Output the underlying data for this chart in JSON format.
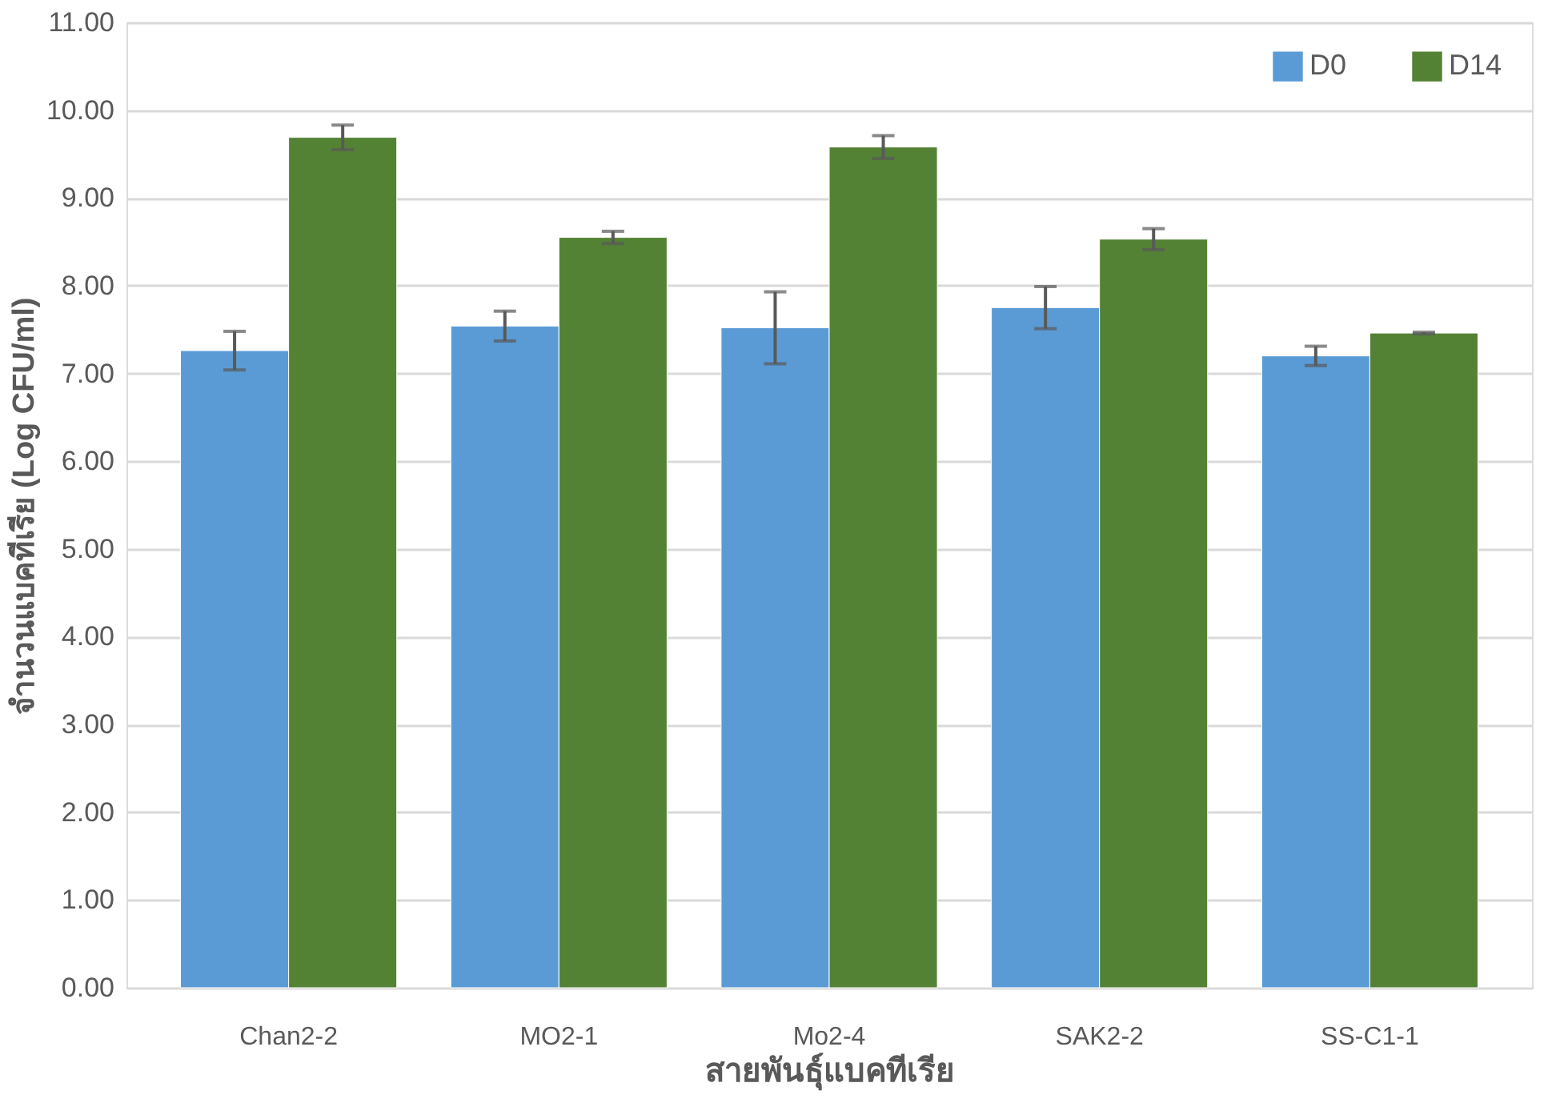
{
  "chart_data": {
    "type": "bar",
    "xlabel": "สายพันธุ์แบคทีเรีย",
    "ylabel": "จำนวนแบคทีเรีย (Log CFU/ml)",
    "categories": [
      "Chan2-2",
      "MO2-1",
      "Mo2-4",
      "SAK2-2",
      "SS-C1-1"
    ],
    "series": [
      {
        "name": "D0",
        "color": "#5b9bd5",
        "values": [
          7.26,
          7.54,
          7.52,
          7.75,
          7.2
        ],
        "errors": [
          0.22,
          0.17,
          0.41,
          0.24,
          0.11
        ]
      },
      {
        "name": "D14",
        "color": "#548235",
        "values": [
          9.69,
          8.55,
          9.58,
          8.53,
          7.46
        ],
        "errors": [
          0.14,
          0.07,
          0.13,
          0.12,
          0.01
        ]
      }
    ],
    "ylim": [
      0,
      11
    ],
    "yticks": [
      {
        "value": 0,
        "label": "0.00"
      },
      {
        "value": 1,
        "label": "1.00"
      },
      {
        "value": 2,
        "label": "2.00"
      },
      {
        "value": 3,
        "label": "3.00"
      },
      {
        "value": 4,
        "label": "4.00"
      },
      {
        "value": 5,
        "label": "5.00"
      },
      {
        "value": 6,
        "label": "6.00"
      },
      {
        "value": 7,
        "label": "7.00"
      },
      {
        "value": 8,
        "label": "8.00"
      },
      {
        "value": 9,
        "label": "9.00"
      },
      {
        "value": 10,
        "label": "10.00"
      },
      {
        "value": 11,
        "label": "11.00"
      }
    ],
    "grid": "y",
    "legend": "top right"
  }
}
